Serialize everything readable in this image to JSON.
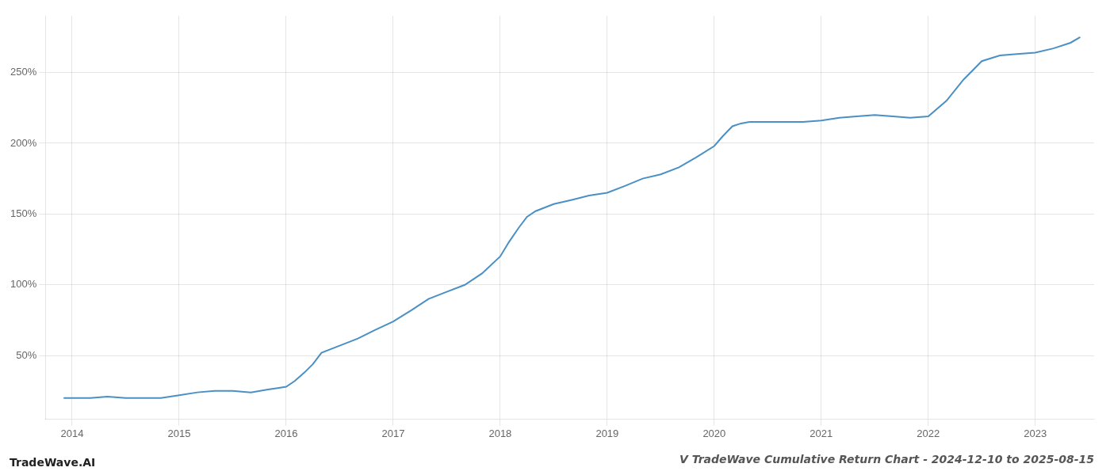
{
  "chart_data": {
    "type": "line",
    "title": "V TradeWave Cumulative Return Chart - 2024-12-10 to 2025-08-15",
    "annotations": [
      "TradeWave.AI"
    ],
    "color": "#4a90c4",
    "grid": true,
    "x": [
      2013.92,
      2014.0,
      2014.17,
      2014.33,
      2014.5,
      2014.67,
      2014.83,
      2015.0,
      2015.17,
      2015.33,
      2015.5,
      2015.67,
      2015.83,
      2015.92,
      2016.0,
      2016.08,
      2016.17,
      2016.25,
      2016.33,
      2016.5,
      2016.67,
      2016.83,
      2017.0,
      2017.17,
      2017.33,
      2017.5,
      2017.67,
      2017.83,
      2018.0,
      2018.08,
      2018.17,
      2018.25,
      2018.33,
      2018.5,
      2018.67,
      2018.83,
      2019.0,
      2019.17,
      2019.33,
      2019.5,
      2019.67,
      2019.83,
      2020.0,
      2020.08,
      2020.17,
      2020.25,
      2020.33,
      2020.5,
      2020.67,
      2020.83,
      2021.0,
      2021.17,
      2021.33,
      2021.5,
      2021.67,
      2021.83,
      2022.0,
      2022.17,
      2022.33,
      2022.5,
      2022.67,
      2022.83,
      2023.0,
      2023.17,
      2023.33,
      2023.42
    ],
    "values": [
      20,
      20,
      20,
      21,
      20,
      20,
      20,
      22,
      24,
      25,
      25,
      24,
      26,
      27,
      28,
      32,
      38,
      44,
      52,
      57,
      62,
      68,
      74,
      82,
      90,
      95,
      100,
      108,
      120,
      130,
      140,
      148,
      152,
      157,
      160,
      163,
      165,
      170,
      175,
      178,
      183,
      190,
      198,
      205,
      212,
      214,
      215,
      215,
      215,
      215,
      216,
      218,
      219,
      220,
      219,
      218,
      219,
      230,
      245,
      258,
      262,
      263,
      264,
      267,
      271,
      275
    ],
    "xlim": [
      2013.75,
      2023.55
    ],
    "xticks": [
      2014,
      2015,
      2016,
      2017,
      2018,
      2019,
      2020,
      2021,
      2022,
      2023
    ],
    "ylim": [
      5,
      290
    ],
    "yticks": [
      {
        "value": 50,
        "label": "50%"
      },
      {
        "value": 100,
        "label": "100%"
      },
      {
        "value": 150,
        "label": "150%"
      },
      {
        "value": 200,
        "label": "200%"
      },
      {
        "value": 250,
        "label": "250%"
      }
    ]
  }
}
